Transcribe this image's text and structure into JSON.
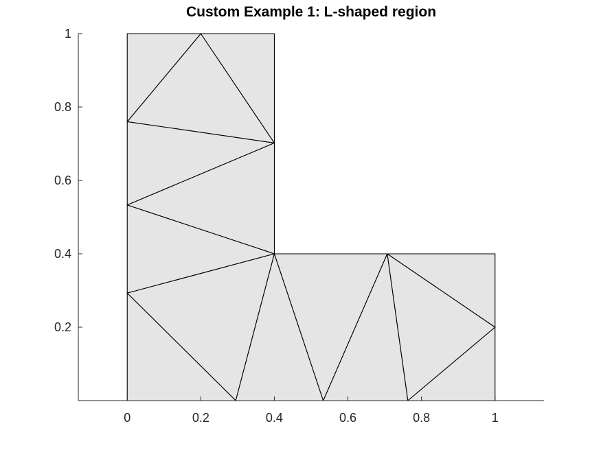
{
  "chart_data": {
    "type": "mesh",
    "title": "Custom Example 1: L-shaped region",
    "xlabel": "",
    "ylabel": "",
    "xlim": [
      -0.133,
      1.133
    ],
    "ylim": [
      0,
      1
    ],
    "xticks": [
      0,
      0.2,
      0.4,
      0.6,
      0.8,
      1
    ],
    "xtick_labels": [
      "0",
      "0.2",
      "0.4",
      "0.6",
      "0.8",
      "1"
    ],
    "yticks": [
      0.2,
      0.4,
      0.6,
      0.8,
      1
    ],
    "ytick_labels": [
      "0.2",
      "0.4",
      "0.6",
      "0.8",
      "1"
    ],
    "grid": false,
    "fill_color": "#e5e5e5",
    "edge_color": "#000000",
    "region": {
      "name": "L-shaped region",
      "boundary": [
        [
          0,
          0
        ],
        [
          1,
          0
        ],
        [
          1,
          0.4
        ],
        [
          0.4,
          0.4
        ],
        [
          0.4,
          1
        ],
        [
          0,
          1
        ]
      ]
    },
    "nodes": [
      [
        0,
        0
      ],
      [
        0.295,
        0
      ],
      [
        0.533,
        0
      ],
      [
        0.763,
        0
      ],
      [
        1,
        0
      ],
      [
        1,
        0.2
      ],
      [
        1,
        0.4
      ],
      [
        0.707,
        0.4
      ],
      [
        0.4,
        0.4
      ],
      [
        0.4,
        0.702
      ],
      [
        0.4,
        1
      ],
      [
        0.2,
        1
      ],
      [
        0,
        1
      ],
      [
        0,
        0.76
      ],
      [
        0,
        0.533
      ],
      [
        0,
        0.293
      ]
    ],
    "triangles": [
      [
        11,
        13,
        9
      ],
      [
        11,
        9,
        10
      ],
      [
        11,
        12,
        13
      ],
      [
        13,
        14,
        9
      ],
      [
        14,
        8,
        9
      ],
      [
        14,
        15,
        8
      ],
      [
        15,
        1,
        8
      ],
      [
        15,
        0,
        1
      ],
      [
        1,
        2,
        8
      ],
      [
        2,
        7,
        8
      ],
      [
        2,
        3,
        7
      ],
      [
        3,
        5,
        7
      ],
      [
        3,
        4,
        5
      ],
      [
        5,
        6,
        7
      ]
    ]
  }
}
